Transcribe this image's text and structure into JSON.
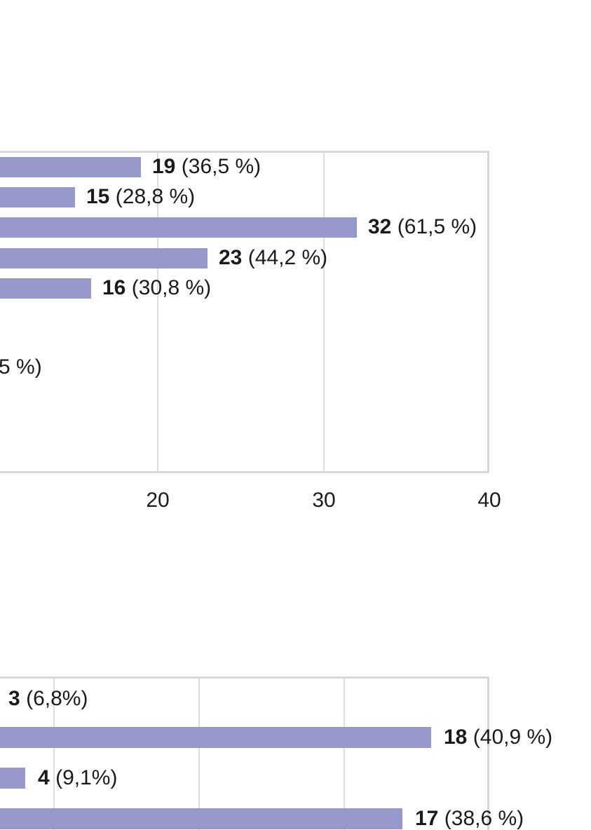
{
  "page": {
    "background": "#ffffff",
    "text_color": "#1b1b1b"
  },
  "colors": {
    "bar_fill": "#9699c9",
    "gridline": "#dcdddf",
    "plot_border": "#d6d7d9"
  },
  "chart_data": [
    {
      "type": "bar",
      "orientation": "horizontal",
      "title": "",
      "layout_note": "survey answer-count bar chart, left portion of plot cropped outside view",
      "x_axis": {
        "tick_values": [
          20,
          30,
          40
        ],
        "visible_tick_labels": [
          "20",
          "30",
          "40"
        ],
        "tick_step": 10,
        "gridlines": true
      },
      "rows": [
        {
          "value": 19,
          "count": "19",
          "percent": "(36,5 %)"
        },
        {
          "value": 15,
          "count": "15",
          "percent": "(28,8 %)"
        },
        {
          "value": 32,
          "count": "32",
          "percent": "(61,5 %)"
        },
        {
          "value": 23,
          "count": "23",
          "percent": "(44,2 %)"
        },
        {
          "value": 16,
          "count": "16",
          "percent": "(30,8 %)"
        }
      ],
      "partial_row_fragment": "5 %)"
    },
    {
      "type": "bar",
      "orientation": "horizontal",
      "title": "",
      "layout_note": "second survey bar chart, left edge and bottom cropped outside view",
      "x_axis": {
        "gridline_values": [
          5,
          10,
          15,
          20
        ],
        "visible_tick_labels": [],
        "tick_step": 5,
        "gridlines": true
      },
      "rows": [
        {
          "value": 3,
          "count": "3",
          "percent": "(6,8%)"
        },
        {
          "value": 18,
          "count": "18",
          "percent": "(40,9 %)"
        },
        {
          "value": 4,
          "count": "4",
          "percent": "(9,1%)"
        },
        {
          "value": 17,
          "count": "17",
          "percent": "(38,6 %)"
        }
      ]
    }
  ]
}
